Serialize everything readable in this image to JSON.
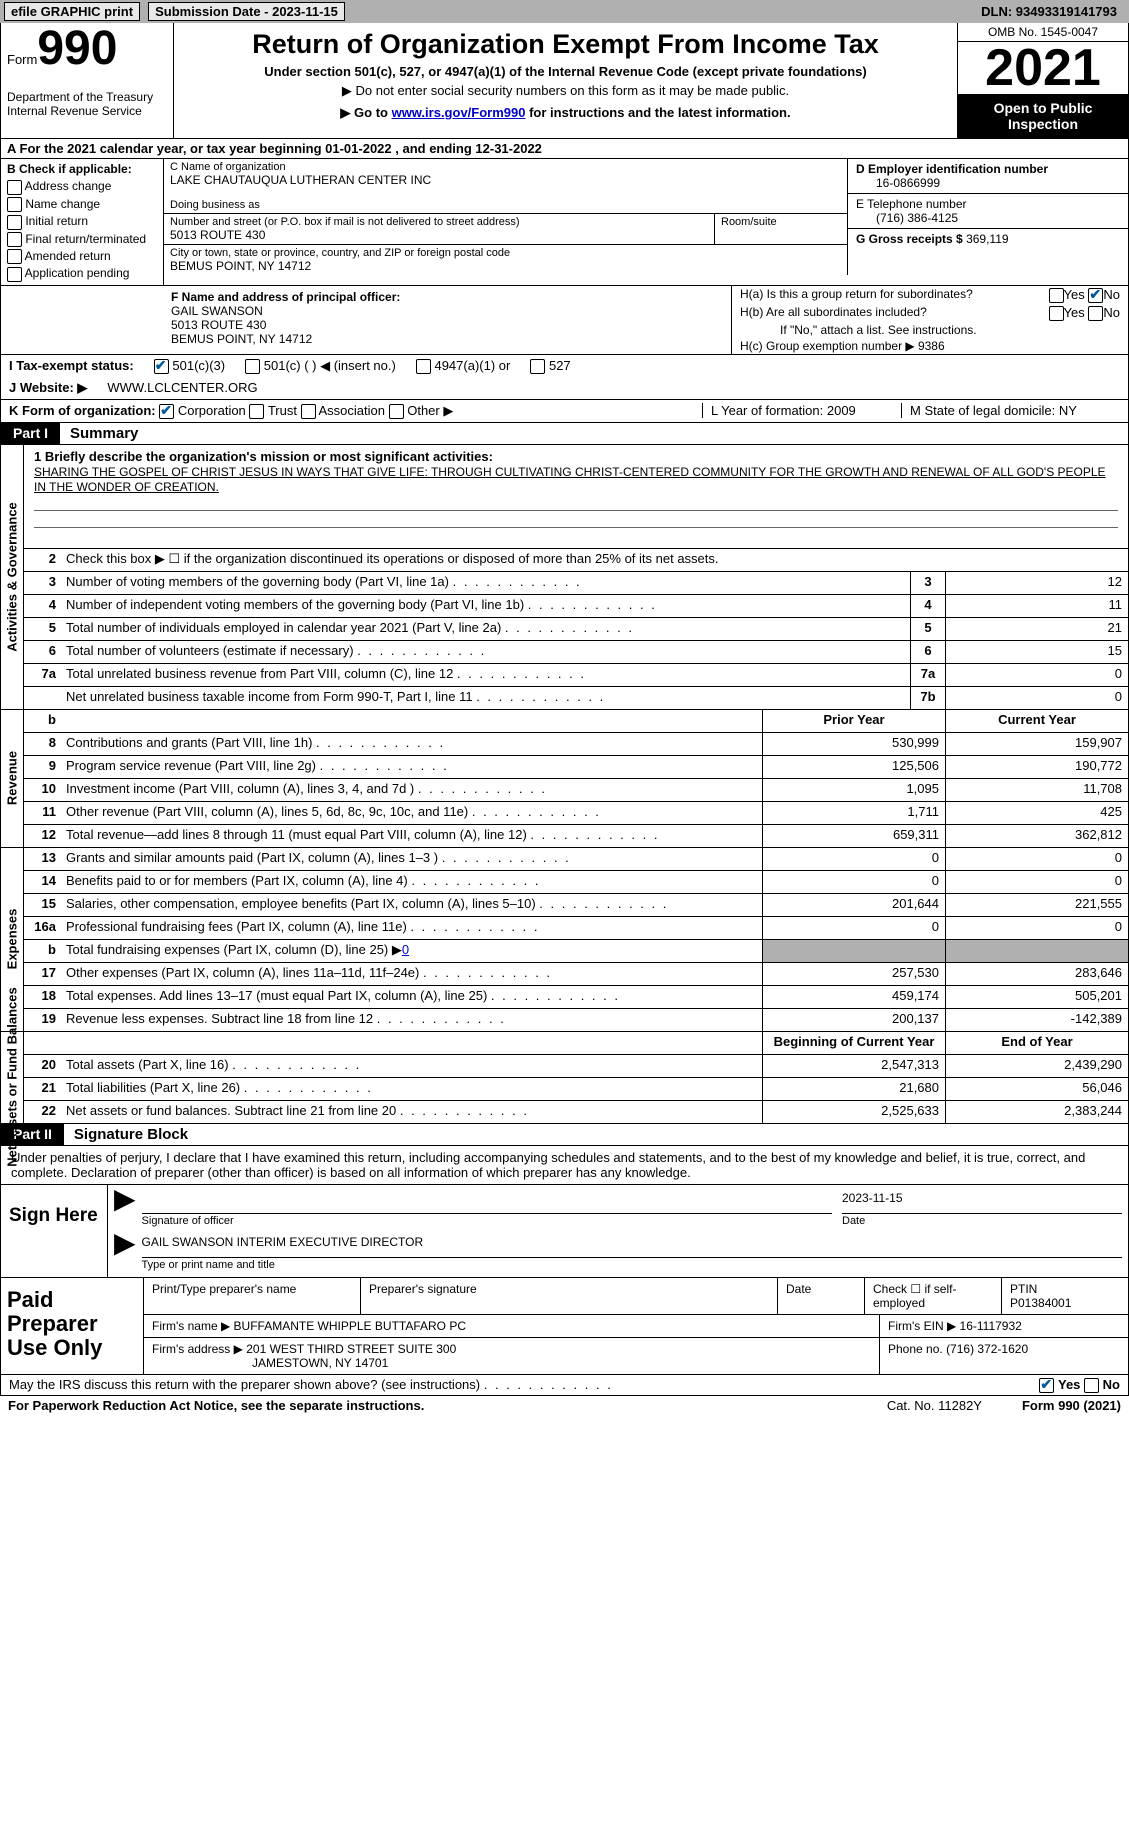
{
  "topbar": {
    "efile": "efile GRAPHIC print",
    "subdate_label": "Submission Date - 2023-11-15",
    "dln": "DLN: 93493319141793"
  },
  "header": {
    "form_label": "Form",
    "form_no": "990",
    "dept": "Department of the Treasury Internal Revenue Service",
    "title": "Return of Organization Exempt From Income Tax",
    "sub1": "Under section 501(c), 527, or 4947(a)(1) of the Internal Revenue Code (except private foundations)",
    "sub2": "▶ Do not enter social security numbers on this form as it may be made public.",
    "sub3_pre": "▶ Go to ",
    "sub3_link": "www.irs.gov/Form990",
    "sub3_post": " for instructions and the latest information.",
    "omb": "OMB No. 1545-0047",
    "year": "2021",
    "open": "Open to Public Inspection"
  },
  "row_a": "A For the 2021 calendar year, or tax year beginning 01-01-2022    , and ending 12-31-2022",
  "col_b": {
    "title": "B Check if applicable:",
    "opts": [
      "Address change",
      "Name change",
      "Initial return",
      "Final return/terminated",
      "Amended return",
      "Application pending"
    ]
  },
  "col_c": {
    "name_label": "C Name of organization",
    "name": "LAKE CHAUTAUQUA LUTHERAN CENTER INC",
    "dba_label": "Doing business as",
    "street_label": "Number and street (or P.O. box if mail is not delivered to street address)",
    "street": "5013 ROUTE 430",
    "room_label": "Room/suite",
    "city_label": "City or town, state or province, country, and ZIP or foreign postal code",
    "city": "BEMUS POINT, NY  14712"
  },
  "col_d": {
    "ein_label": "D Employer identification number",
    "ein": "16-0866999",
    "tel_label": "E Telephone number",
    "tel": "(716) 386-4125",
    "gross_label": "G Gross receipts $",
    "gross": "369,119"
  },
  "col_f": {
    "label": "F Name and address of principal officer:",
    "name": "GAIL SWANSON",
    "street": "5013 ROUTE 430",
    "city": "BEMUS POINT, NY  14712"
  },
  "col_h": {
    "ha": "H(a)  Is this a group return for subordinates?",
    "hb": "H(b)  Are all subordinates included?",
    "hb_note": "If \"No,\" attach a list. See instructions.",
    "hc": "H(c)  Group exemption number  ▶   9386",
    "yes": "Yes",
    "no": "No"
  },
  "row_i": {
    "label": "I  Tax-exempt status:",
    "opt1": "501(c)(3)",
    "opt2": "501(c) (  ) ◀ (insert no.)",
    "opt3": "4947(a)(1) or",
    "opt4": "527"
  },
  "row_j": {
    "label": "J  Website: ▶",
    "val": "WWW.LCLCENTER.ORG"
  },
  "row_k": {
    "label": "K Form of organization:",
    "opts": [
      "Corporation",
      "Trust",
      "Association",
      "Other ▶"
    ],
    "l": "L Year of formation: 2009",
    "m": "M State of legal domicile: NY"
  },
  "part1": {
    "num": "Part I",
    "title": "Summary"
  },
  "mission": {
    "label": "1  Briefly describe the organization's mission or most significant activities:",
    "text": "SHARING THE GOSPEL OF CHRIST JESUS IN WAYS THAT GIVE LIFE: THROUGH CULTIVATING CHRIST-CENTERED COMMUNITY FOR THE GROWTH AND RENEWAL OF ALL GOD'S PEOPLE IN THE WONDER OF CREATION."
  },
  "vert": {
    "ag": "Activities & Governance",
    "rev": "Revenue",
    "exp": "Expenses",
    "na": "Net Assets or Fund Balances"
  },
  "lines_ag": [
    {
      "n": "2",
      "d": "Check this box ▶ ☐ if the organization discontinued its operations or disposed of more than 25% of its net assets."
    },
    {
      "n": "3",
      "d": "Number of voting members of the governing body (Part VI, line 1a)",
      "box": "3",
      "v": "12"
    },
    {
      "n": "4",
      "d": "Number of independent voting members of the governing body (Part VI, line 1b)",
      "box": "4",
      "v": "11"
    },
    {
      "n": "5",
      "d": "Total number of individuals employed in calendar year 2021 (Part V, line 2a)",
      "box": "5",
      "v": "21"
    },
    {
      "n": "6",
      "d": "Total number of volunteers (estimate if necessary)",
      "box": "6",
      "v": "15"
    },
    {
      "n": "7a",
      "d": "Total unrelated business revenue from Part VIII, column (C), line 12",
      "box": "7a",
      "v": "0"
    },
    {
      "n": "",
      "d": "Net unrelated business taxable income from Form 990-T, Part I, line 11",
      "box": "7b",
      "v": "0"
    }
  ],
  "header_cols": {
    "py": "Prior Year",
    "cy": "Current Year"
  },
  "lines_rev": [
    {
      "n": "8",
      "d": "Contributions and grants (Part VIII, line 1h)",
      "py": "530,999",
      "cy": "159,907"
    },
    {
      "n": "9",
      "d": "Program service revenue (Part VIII, line 2g)",
      "py": "125,506",
      "cy": "190,772"
    },
    {
      "n": "10",
      "d": "Investment income (Part VIII, column (A), lines 3, 4, and 7d )",
      "py": "1,095",
      "cy": "11,708"
    },
    {
      "n": "11",
      "d": "Other revenue (Part VIII, column (A), lines 5, 6d, 8c, 9c, 10c, and 11e)",
      "py": "1,711",
      "cy": "425"
    },
    {
      "n": "12",
      "d": "Total revenue—add lines 8 through 11 (must equal Part VIII, column (A), line 12)",
      "py": "659,311",
      "cy": "362,812"
    }
  ],
  "lines_exp": [
    {
      "n": "13",
      "d": "Grants and similar amounts paid (Part IX, column (A), lines 1–3 )",
      "py": "0",
      "cy": "0"
    },
    {
      "n": "14",
      "d": "Benefits paid to or for members (Part IX, column (A), line 4)",
      "py": "0",
      "cy": "0"
    },
    {
      "n": "15",
      "d": "Salaries, other compensation, employee benefits (Part IX, column (A), lines 5–10)",
      "py": "201,644",
      "cy": "221,555"
    },
    {
      "n": "16a",
      "d": "Professional fundraising fees (Part IX, column (A), line 11e)",
      "py": "0",
      "cy": "0"
    },
    {
      "n": "b",
      "d": "Total fundraising expenses (Part IX, column (D), line 25) ▶",
      "fund_val": "0",
      "gray": true
    },
    {
      "n": "17",
      "d": "Other expenses (Part IX, column (A), lines 11a–11d, 11f–24e)",
      "py": "257,530",
      "cy": "283,646"
    },
    {
      "n": "18",
      "d": "Total expenses. Add lines 13–17 (must equal Part IX, column (A), line 25)",
      "py": "459,174",
      "cy": "505,201"
    },
    {
      "n": "19",
      "d": "Revenue less expenses. Subtract line 18 from line 12",
      "py": "200,137",
      "cy": "-142,389"
    }
  ],
  "header_cols2": {
    "py": "Beginning of Current Year",
    "cy": "End of Year"
  },
  "lines_na": [
    {
      "n": "20",
      "d": "Total assets (Part X, line 16)",
      "py": "2,547,313",
      "cy": "2,439,290"
    },
    {
      "n": "21",
      "d": "Total liabilities (Part X, line 26)",
      "py": "21,680",
      "cy": "56,046"
    },
    {
      "n": "22",
      "d": "Net assets or fund balances. Subtract line 21 from line 20",
      "py": "2,525,633",
      "cy": "2,383,244"
    }
  ],
  "part2": {
    "num": "Part II",
    "title": "Signature Block"
  },
  "sig_text": "Under penalties of perjury, I declare that I have examined this return, including accompanying schedules and statements, and to the best of my knowledge and belief, it is true, correct, and complete. Declaration of preparer (other than officer) is based on all information of which preparer has any knowledge.",
  "sign_here": "Sign Here",
  "sig": {
    "sig_label": "Signature of officer",
    "date_label": "Date",
    "date": "2023-11-15",
    "name": "GAIL SWANSON  INTERIM EXECUTIVE DIRECTOR",
    "name_label": "Type or print name and title"
  },
  "paid_prep": "Paid Preparer Use Only",
  "prep": {
    "name_label": "Print/Type preparer's name",
    "sig_label": "Preparer's signature",
    "date_label": "Date",
    "check_label": "Check ☐ if self-employed",
    "ptin_label": "PTIN",
    "ptin": "P01384001",
    "firm_label": "Firm's name    ▶",
    "firm": "BUFFAMANTE WHIPPLE BUTTAFARO PC",
    "ein_label": "Firm's EIN ▶",
    "ein": "16-1117932",
    "addr_label": "Firm's address ▶",
    "addr1": "201 WEST THIRD STREET SUITE 300",
    "addr2": "JAMESTOWN, NY  14701",
    "phone_label": "Phone no.",
    "phone": "(716) 372-1620"
  },
  "discuss": "May the IRS discuss this return with the preparer shown above? (see instructions)",
  "footer": {
    "pra": "For Paperwork Reduction Act Notice, see the separate instructions.",
    "cat": "Cat. No. 11282Y",
    "form": "Form 990 (2021)"
  }
}
